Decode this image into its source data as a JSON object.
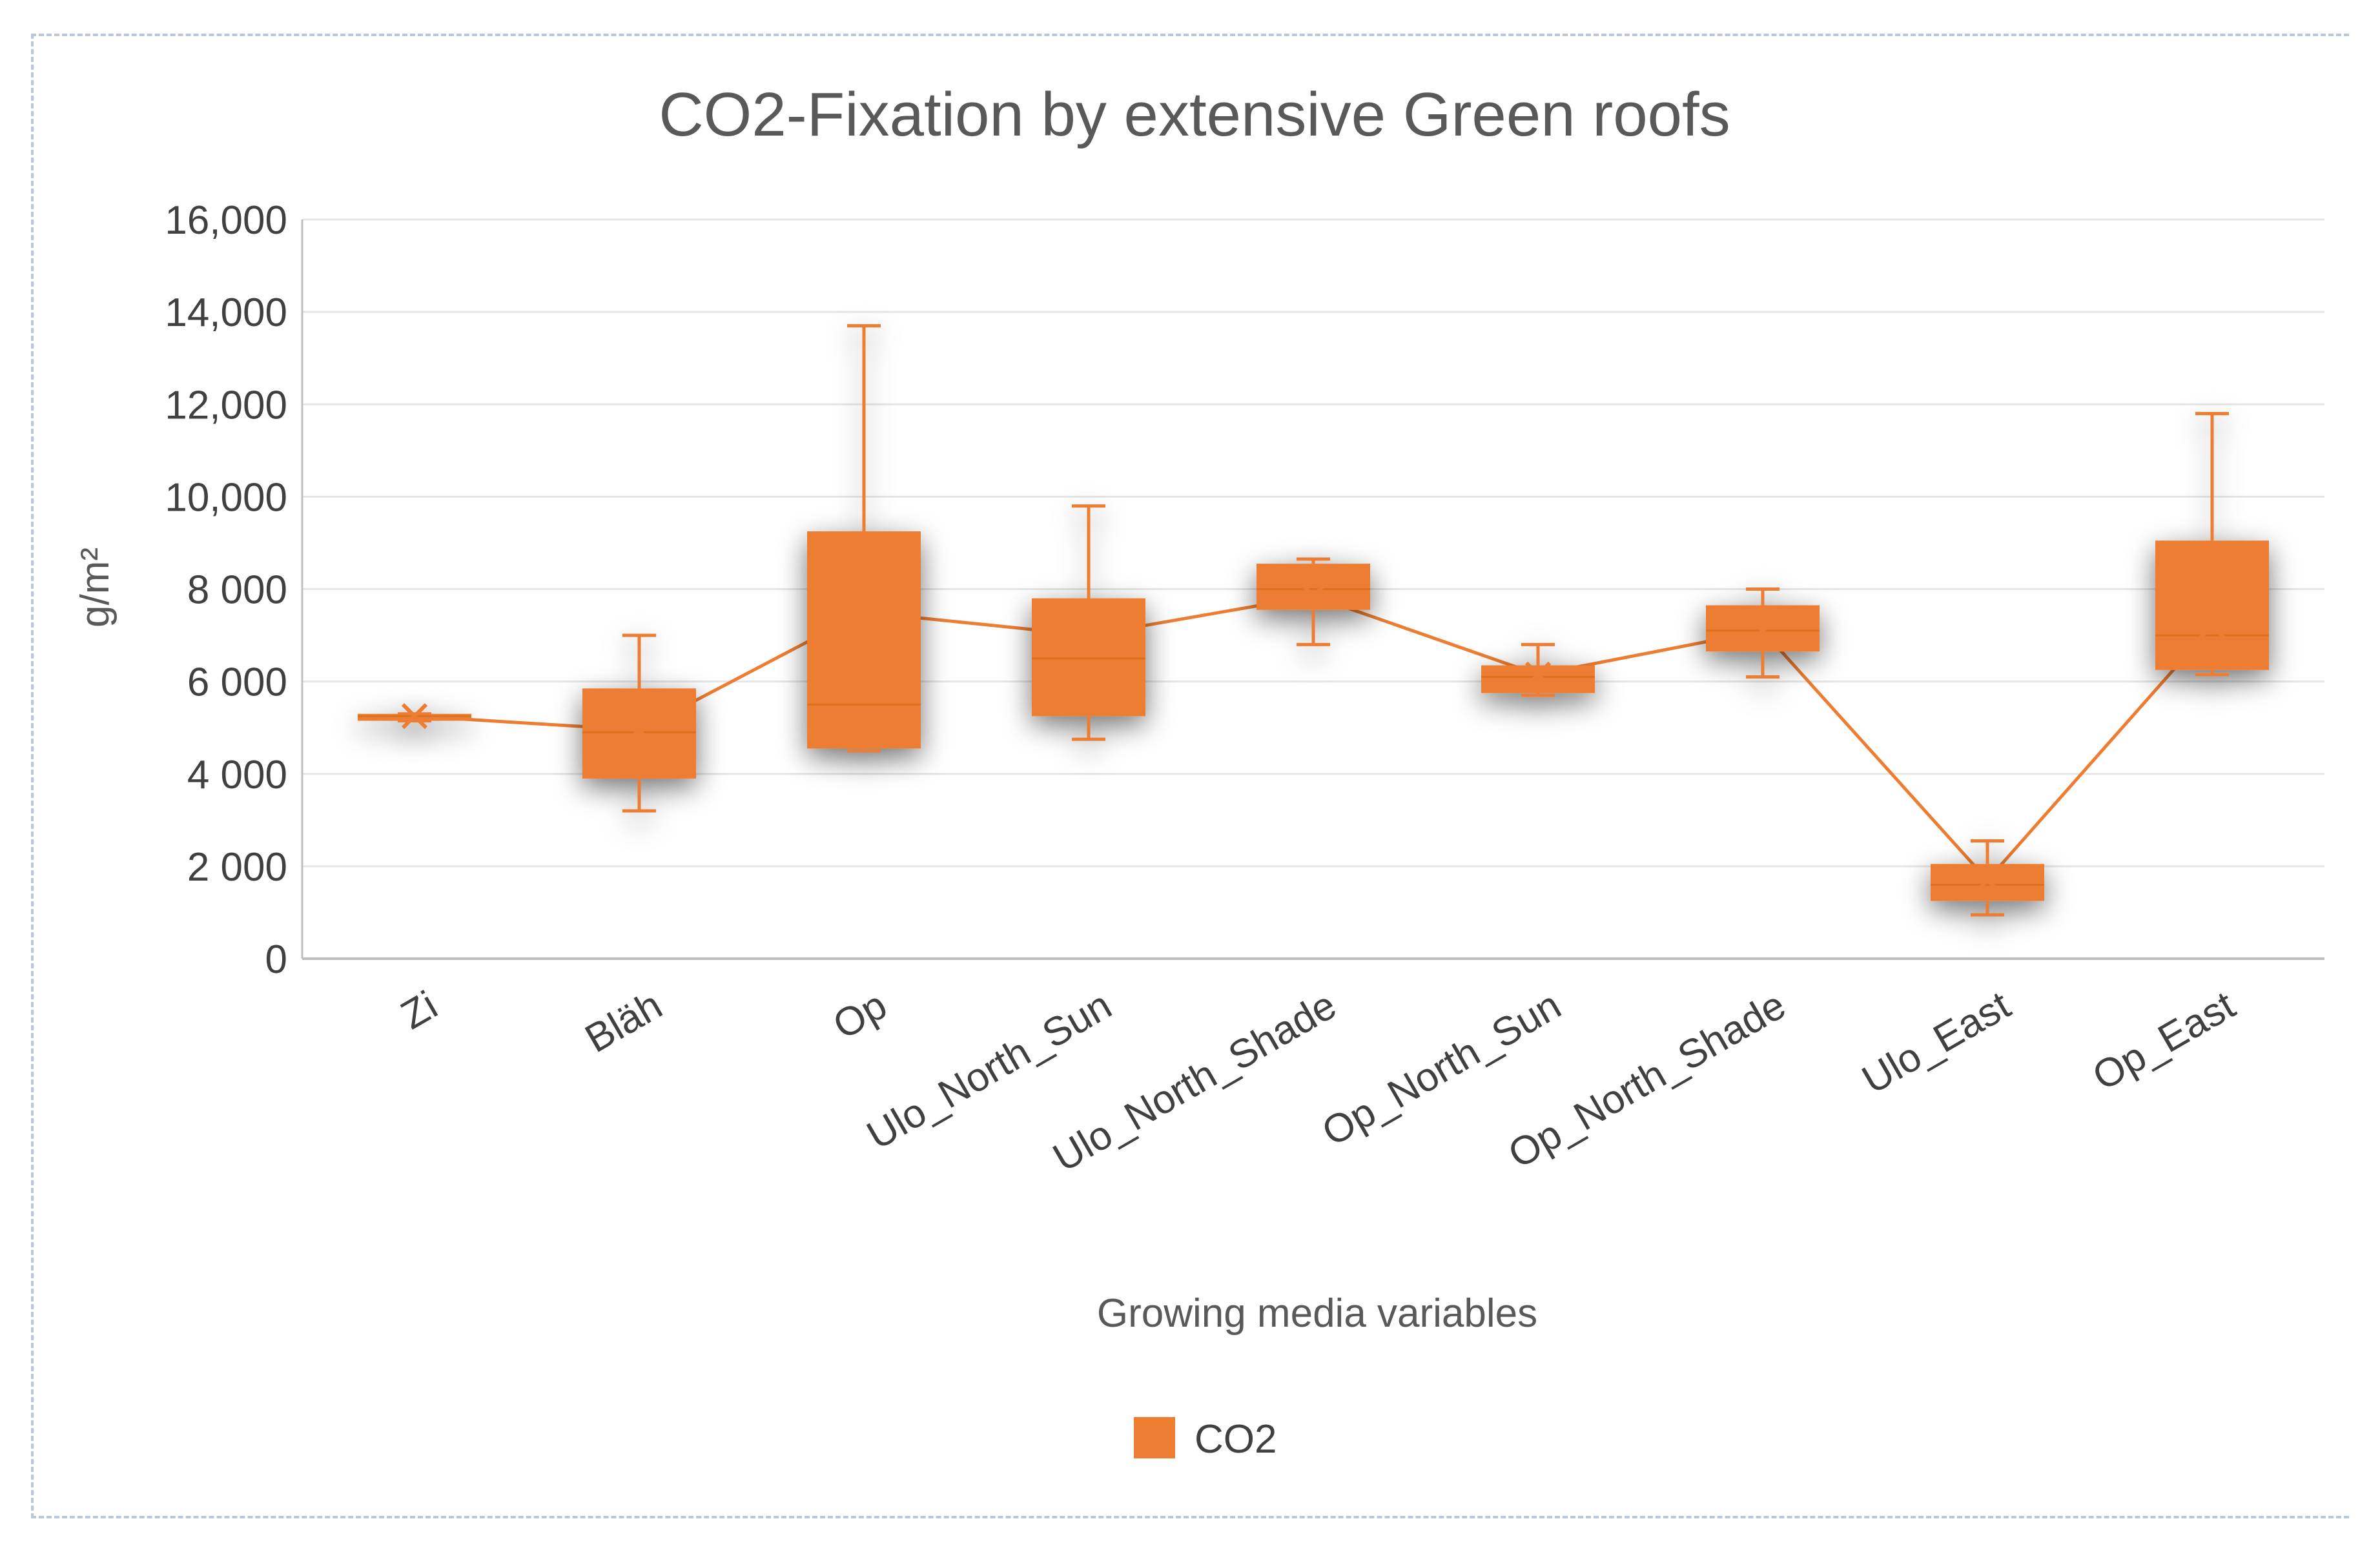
{
  "chart_data": {
    "type": "box",
    "title": "CO2-Fixation by extensive Green roofs",
    "xlabel": "Growing media variables",
    "ylabel": "g/m²",
    "ylim": [
      0,
      16000
    ],
    "y_ticks": [
      0,
      2000,
      4000,
      6000,
      8000,
      10000,
      12000,
      14000,
      16000
    ],
    "y_tick_labels": [
      "0",
      "2 000",
      "4 000",
      "6 000",
      "8 000",
      "10,000",
      "12,000",
      "14,000",
      "16,000"
    ],
    "categories": [
      "Zi",
      "Bläh",
      "Op",
      "Ulo_North_Sun",
      "Ulo_North_Shade",
      "Op_North_Sun",
      "Op_North_Shade",
      "Ulo_East",
      "Op_East"
    ],
    "series": [
      {
        "name": "CO2",
        "color": "#ED7D31",
        "boxes": [
          {
            "category": "Zi",
            "min": 5150,
            "q1": 5150,
            "median": 5250,
            "q3": 5300,
            "max": 5300
          },
          {
            "category": "Bläh",
            "min": 3200,
            "q1": 3900,
            "median": 4900,
            "q3": 5850,
            "max": 7000
          },
          {
            "category": "Op",
            "min": 4500,
            "q1": 4550,
            "median": 5500,
            "q3": 9250,
            "max": 13700
          },
          {
            "category": "Ulo_North_Sun",
            "min": 4750,
            "q1": 5250,
            "median": 6500,
            "q3": 7800,
            "max": 9800
          },
          {
            "category": "Ulo_North_Shade",
            "min": 6800,
            "q1": 7550,
            "median": 8000,
            "q3": 8550,
            "max": 8650
          },
          {
            "category": "Op_North_Sun",
            "min": 5700,
            "q1": 5750,
            "median": 6100,
            "q3": 6350,
            "max": 6800
          },
          {
            "category": "Op_North_Shade",
            "min": 6100,
            "q1": 6650,
            "median": 7100,
            "q3": 7650,
            "max": 8000
          },
          {
            "category": "Ulo_East",
            "min": 950,
            "q1": 1250,
            "median": 1600,
            "q3": 2050,
            "max": 2550
          },
          {
            "category": "Op_East",
            "min": 6150,
            "q1": 6250,
            "median": 7000,
            "q3": 9050,
            "max": 11800
          }
        ],
        "means": [
          5250,
          4950,
          7500,
          7000,
          7850,
          6150,
          7100,
          1700,
          7200
        ]
      }
    ],
    "legend": [
      "CO2"
    ],
    "legend_position": "bottom",
    "grid": true
  }
}
